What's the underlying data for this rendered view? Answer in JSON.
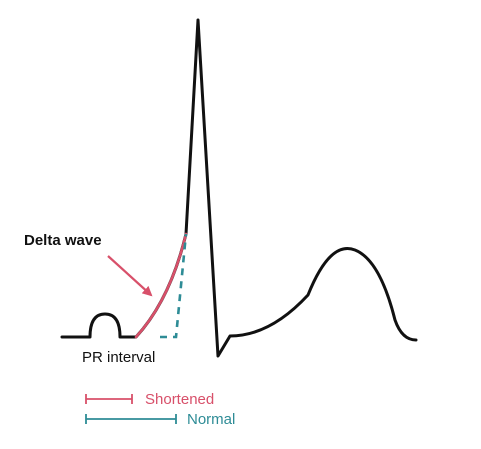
{
  "labels": {
    "delta_wave": "Delta wave",
    "pr_interval": "PR interval"
  },
  "legend": [
    {
      "label": "Shortened",
      "color": "#d8506a"
    },
    {
      "label": "Normal",
      "color": "#2e8c96"
    }
  ],
  "colors": {
    "trace": "#111111",
    "delta": "#d8506a",
    "normal": "#2e8c96",
    "arrow": "#d8506a"
  }
}
